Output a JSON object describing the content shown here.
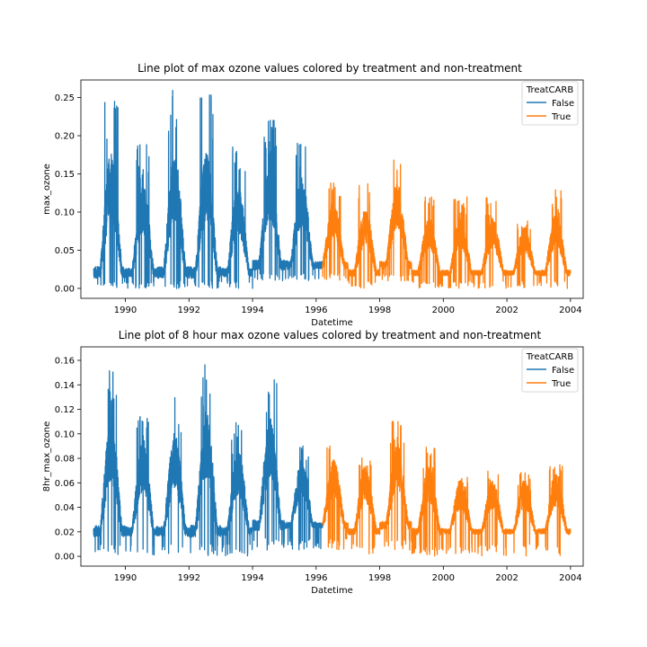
{
  "chart_data": [
    {
      "type": "line",
      "title": "Line plot of max ozone values colored by treatment and non-treatment",
      "xlabel": "Datetime",
      "ylabel": "max_ozone",
      "xlim": [
        1988.6,
        2004.4
      ],
      "ylim": [
        -0.013,
        0.273
      ],
      "xticks": [
        1990,
        1992,
        1994,
        1996,
        1998,
        2000,
        2002,
        2004
      ],
      "yticks": [
        0.0,
        0.05,
        0.1,
        0.15,
        0.2,
        0.25
      ],
      "ytick_labels": [
        "0.00",
        "0.05",
        "0.10",
        "0.15",
        "0.20",
        "0.25"
      ],
      "legend": {
        "title": "TreatCARB",
        "position": "top-right"
      },
      "series": [
        {
          "name": "False",
          "color": "#1f77b4",
          "x_range": [
            1989.0,
            1996.2
          ],
          "summer_peaks": [
            0.26,
            0.19,
            0.26,
            0.26,
            0.19,
            0.22,
            0.19,
            0.16
          ],
          "winter_lows": [
            0.0,
            0.0,
            0.0,
            0.0,
            0.0,
            0.01,
            0.01,
            0.01
          ]
        },
        {
          "name": "True",
          "color": "#ff7f0e",
          "x_range": [
            1996.2,
            2004.0
          ],
          "summer_peaks": [
            0.14,
            0.14,
            0.18,
            0.12,
            0.12,
            0.12,
            0.1,
            0.13
          ],
          "winter_lows": [
            0.01,
            0.0,
            0.01,
            0.0,
            0.0,
            0.0,
            0.0,
            0.0
          ]
        }
      ]
    },
    {
      "type": "line",
      "title": "Line plot of 8 hour max ozone values colored by treatment and non-treatment",
      "xlabel": "Datetime",
      "ylabel": "8hr_max_ozone",
      "xlim": [
        1988.6,
        2004.4
      ],
      "ylim": [
        -0.008,
        0.171
      ],
      "xticks": [
        1990,
        1992,
        1994,
        1996,
        1998,
        2000,
        2002,
        2004
      ],
      "yticks": [
        0.0,
        0.02,
        0.04,
        0.06,
        0.08,
        0.1,
        0.12,
        0.14,
        0.16
      ],
      "ytick_labels": [
        "0.00",
        "0.02",
        "0.04",
        "0.06",
        "0.08",
        "0.10",
        "0.12",
        "0.14",
        "0.16"
      ],
      "legend": {
        "title": "TreatCARB",
        "position": "top-right"
      },
      "series": [
        {
          "name": "False",
          "color": "#1f77b4",
          "x_range": [
            1989.0,
            1996.2
          ],
          "summer_peaks": [
            0.152,
            0.12,
            0.132,
            0.163,
            0.11,
            0.145,
            0.09,
            0.07
          ],
          "winter_lows": [
            0.0,
            0.0,
            0.0,
            0.0,
            0.0,
            0.005,
            0.005,
            0.005
          ]
        },
        {
          "name": "True",
          "color": "#ff7f0e",
          "x_range": [
            1996.2,
            2004.0
          ],
          "summer_peaks": [
            0.09,
            0.09,
            0.11,
            0.09,
            0.07,
            0.07,
            0.07,
            0.078
          ],
          "winter_lows": [
            0.005,
            0.0,
            0.005,
            0.0,
            0.0,
            0.0,
            0.0,
            0.0
          ]
        }
      ]
    }
  ]
}
